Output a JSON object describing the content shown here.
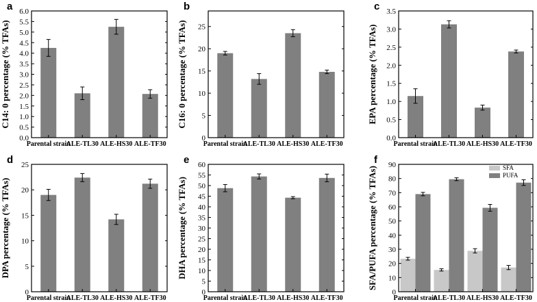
{
  "chart_data": [
    {
      "panel": "a",
      "type": "bar",
      "categories": [
        "Parental strain",
        "ALE-TL30",
        "ALE-HS30",
        "ALE-TF30"
      ],
      "values": [
        4.25,
        2.1,
        5.25,
        2.07
      ],
      "errors": [
        0.4,
        0.3,
        0.35,
        0.2
      ],
      "ylabel": "C14: 0 percentage (% TFAs)",
      "ylim": [
        0,
        6.0
      ],
      "ticks": [
        0.0,
        0.5,
        1.0,
        1.5,
        2.0,
        2.5,
        3.0,
        3.5,
        4.0,
        4.5,
        5.0,
        5.5,
        6.0
      ],
      "tick_labels": [
        "0.0",
        "0.5",
        "1.0",
        "1.5",
        "2.0",
        "2.5",
        "3.0",
        "3.5",
        "4.0",
        "4.5",
        "5.0",
        "5.5",
        "6.0"
      ]
    },
    {
      "panel": "b",
      "type": "bar",
      "categories": [
        "Parental strain",
        "ALE-TL30",
        "ALE-HS30",
        "ALE-TF30"
      ],
      "values": [
        19.0,
        13.2,
        23.5,
        14.8
      ],
      "errors": [
        0.4,
        1.2,
        0.8,
        0.4
      ],
      "ylabel": "C16: 0 percentage (% TFAs)",
      "ylim": [
        0,
        28.5
      ],
      "ticks": [
        0,
        5,
        10,
        15,
        20,
        25
      ],
      "tick_labels": [
        "0",
        "5",
        "10",
        "15",
        "20",
        "25"
      ]
    },
    {
      "panel": "c",
      "type": "bar",
      "categories": [
        "Parental strain",
        "ALE-TL30",
        "ALE-HS30",
        "ALE-TF30"
      ],
      "values": [
        1.15,
        3.13,
        0.83,
        2.38
      ],
      "errors": [
        0.2,
        0.1,
        0.07,
        0.04
      ],
      "ylabel": "EPA percentage (% TFAs)",
      "ylim": [
        0,
        3.5
      ],
      "ticks": [
        0.0,
        0.5,
        1.0,
        1.5,
        2.0,
        2.5,
        3.0,
        3.5
      ],
      "tick_labels": [
        "0.0",
        "0.5",
        "1.0",
        "1.5",
        "2.0",
        "2.5",
        "3.0",
        "3.5"
      ]
    },
    {
      "panel": "d",
      "type": "bar",
      "categories": [
        "Parental strain",
        "ALE-TL30",
        "ALE-HS30",
        "ALE-TF30"
      ],
      "values": [
        19.0,
        22.4,
        14.2,
        21.2
      ],
      "errors": [
        1.1,
        0.8,
        1.0,
        0.9
      ],
      "ylabel": "DPA percentage (% TFAs)",
      "ylim": [
        0,
        25
      ],
      "ticks": [
        0,
        5,
        10,
        15,
        20,
        25
      ],
      "tick_labels": [
        "0",
        "5",
        "10",
        "15",
        "20",
        "25"
      ]
    },
    {
      "panel": "e",
      "type": "bar",
      "categories": [
        "Parental strain",
        "ALE-TL30",
        "ALE-HS30",
        "ALE-TF30"
      ],
      "values": [
        48.8,
        54.3,
        44.3,
        53.6
      ],
      "errors": [
        1.7,
        1.2,
        0.5,
        1.8
      ],
      "ylabel": "DHA percentage (% TFAs)",
      "ylim": [
        0,
        60
      ],
      "ticks": [
        0,
        5,
        10,
        15,
        20,
        25,
        30,
        35,
        40,
        45,
        50,
        55,
        60
      ],
      "tick_labels": [
        "0",
        "5",
        "10",
        "15",
        "20",
        "25",
        "30",
        "35",
        "40",
        "45",
        "50",
        "55",
        "60"
      ]
    },
    {
      "panel": "f",
      "type": "bar",
      "categories": [
        "Parental strain",
        "ALE-TL30",
        "ALE-HS30",
        "ALE-TF30"
      ],
      "series": [
        {
          "name": "SFA",
          "values": [
            23.3,
            15.4,
            28.9,
            17.1
          ],
          "errors": [
            1.0,
            0.8,
            1.5,
            1.5
          ],
          "color": "#c8c8c8"
        },
        {
          "name": "PUFA",
          "values": [
            69.0,
            79.5,
            59.3,
            77.1
          ],
          "errors": [
            1.2,
            1.0,
            2.4,
            2.0
          ],
          "color": "#808080"
        }
      ],
      "ylabel": "SFA/PUFA percentage (% TFAs)",
      "ylim": [
        0,
        90
      ],
      "ticks": [
        0,
        10,
        20,
        30,
        40,
        50,
        60,
        70,
        80,
        90
      ],
      "tick_labels": [
        "0",
        "10",
        "20",
        "30",
        "40",
        "50",
        "60",
        "70",
        "80",
        "90"
      ],
      "legend_position": "top-right"
    }
  ],
  "colors": {
    "bar": "#808080",
    "axis": "#000000"
  }
}
